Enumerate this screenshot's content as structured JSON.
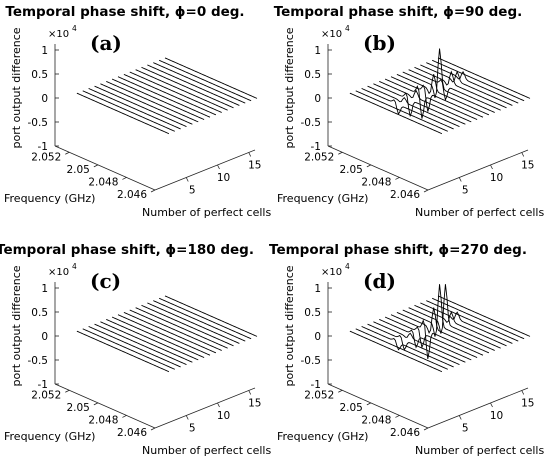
{
  "chart_data": [
    {
      "type": "line",
      "panel_label": "(a)",
      "title": "Temporal phase shift, ϕ=0 deg.",
      "zlabel": "port output difference",
      "xlabel": "Number of perfect cells",
      "ylabel": "Frequency (GHz)",
      "z_exponent": "×10",
      "z_exponent_power": "4",
      "z_ticks": [
        "1",
        "0.5",
        "0",
        "-0.5",
        "-1"
      ],
      "x_ticks": [
        "5",
        "10",
        "15"
      ],
      "y_ticks": [
        "2.052",
        "2.05",
        "2.048",
        "2.046"
      ],
      "x_range": [
        0,
        16
      ],
      "y_range": [
        2.046,
        2.053
      ],
      "zlim": [
        -10000,
        10000
      ],
      "series_count": 16,
      "description_values": "all traces flat at 0",
      "peaks": []
    },
    {
      "type": "line",
      "panel_label": "(b)",
      "title": "Temporal phase shift, ϕ=90 deg.",
      "zlabel": "port output difference",
      "xlabel": "Number of perfect cells",
      "ylabel": "Frequency (GHz)",
      "z_exponent": "×10",
      "z_exponent_power": "4",
      "z_ticks": [
        "1",
        "0.5",
        "0",
        "-0.5",
        "-1"
      ],
      "x_ticks": [
        "5",
        "10",
        "15"
      ],
      "y_ticks": [
        "2.052",
        "2.05",
        "2.048",
        "2.046"
      ],
      "x_range": [
        0,
        16
      ],
      "y_range": [
        2.046,
        2.053
      ],
      "zlim": [
        -10000,
        10000
      ],
      "series_count": 16,
      "peaks": [
        {
          "cell": 3,
          "freq": 2.0502,
          "z": -2000
        },
        {
          "cell": 4,
          "freq": 2.0502,
          "z": 1000
        },
        {
          "cell": 5,
          "freq": 2.0502,
          "z": -3500
        },
        {
          "cell": 6,
          "freq": 2.0502,
          "z": 1500
        },
        {
          "cell": 7,
          "freq": 2.0502,
          "z": -5000
        },
        {
          "cell": 8,
          "freq": 2.0502,
          "z": -4000
        },
        {
          "cell": 9,
          "freq": 2.0502,
          "z": 3500
        },
        {
          "cell": 10,
          "freq": 2.0502,
          "z": 8500
        },
        {
          "cell": 11,
          "freq": 2.0502,
          "z": -3000
        },
        {
          "cell": 12,
          "freq": 2.0502,
          "z": 2500
        },
        {
          "cell": 13,
          "freq": 2.0502,
          "z": 2000
        },
        {
          "cell": 14,
          "freq": 2.0502,
          "z": 1500
        }
      ]
    },
    {
      "type": "line",
      "panel_label": "(c)",
      "title": "Temporal phase shift, ϕ=180 deg.",
      "zlabel": "port output difference",
      "xlabel": "Number of perfect cells",
      "ylabel": "Frequency (GHz)",
      "z_exponent": "×10",
      "z_exponent_power": "4",
      "z_ticks": [
        "1",
        "0.5",
        "0",
        "-0.5",
        "-1"
      ],
      "x_ticks": [
        "5",
        "10",
        "15"
      ],
      "y_ticks": [
        "2.052",
        "2.05",
        "2.048",
        "2.046"
      ],
      "x_range": [
        0,
        16
      ],
      "y_range": [
        2.046,
        2.053
      ],
      "zlim": [
        -10000,
        10000
      ],
      "series_count": 16,
      "peaks": []
    },
    {
      "type": "line",
      "panel_label": "(d)",
      "title": "Temporal phase shift, ϕ=270 deg.",
      "zlabel": "port output difference",
      "xlabel": "Number of perfect cells",
      "ylabel": "Frequency (GHz)",
      "z_exponent": "×10",
      "z_exponent_power": "4",
      "z_ticks": [
        "1",
        "0.5",
        "0",
        "-0.5",
        "-1"
      ],
      "x_ticks": [
        "5",
        "10",
        "15"
      ],
      "y_ticks": [
        "2.052",
        "2.05",
        "2.048",
        "2.046"
      ],
      "x_range": [
        0,
        16
      ],
      "y_range": [
        2.046,
        2.053
      ],
      "zlim": [
        -10000,
        10000
      ],
      "series_count": 16,
      "peaks": [
        {
          "cell": 3,
          "freq": 2.0502,
          "z": -1500
        },
        {
          "cell": 4,
          "freq": 2.0502,
          "z": -2000
        },
        {
          "cell": 5,
          "freq": 2.0502,
          "z": 1000
        },
        {
          "cell": 6,
          "freq": 2.0502,
          "z": -2500
        },
        {
          "cell": 7,
          "freq": 2.0502,
          "z": -3000
        },
        {
          "cell": 8,
          "freq": 2.0502,
          "z": -6000
        },
        {
          "cell": 9,
          "freq": 2.0502,
          "z": 4500
        },
        {
          "cell": 10,
          "freq": 2.0502,
          "z": 9000
        },
        {
          "cell": 11,
          "freq": 2.0502,
          "z": 8500
        },
        {
          "cell": 12,
          "freq": 2.0502,
          "z": 2000
        },
        {
          "cell": 13,
          "freq": 2.0502,
          "z": 1500
        }
      ]
    }
  ]
}
